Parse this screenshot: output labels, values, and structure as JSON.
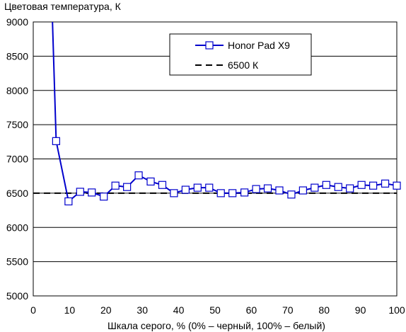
{
  "chart_data": {
    "type": "line",
    "title": "",
    "ylabel": "Цветовая температура, К",
    "xlabel": "Шкала серого, % (0% – черный, 100% – белый)",
    "xlim": [
      0,
      100
    ],
    "ylim": [
      5000,
      9000
    ],
    "xticks": [
      0,
      10,
      20,
      30,
      40,
      50,
      60,
      70,
      80,
      90,
      100
    ],
    "yticks": [
      5000,
      5500,
      6000,
      6500,
      7000,
      7500,
      8000,
      8500,
      9000
    ],
    "grid": "horizontal",
    "legend_position": "top-right",
    "series": [
      {
        "name": "Honor Pad X9",
        "color": "#0000cc",
        "marker": "square-open",
        "x": [
          5.3,
          6.3,
          9.7,
          12.9,
          16.1,
          19.4,
          22.6,
          25.8,
          29.0,
          32.3,
          35.5,
          38.7,
          41.9,
          45.2,
          48.4,
          51.6,
          54.8,
          58.1,
          61.3,
          64.5,
          67.7,
          71.0,
          74.2,
          77.4,
          80.6,
          83.9,
          87.1,
          90.3,
          93.5,
          96.8,
          100
        ],
        "y": [
          9000,
          7260,
          6380,
          6520,
          6510,
          6450,
          6610,
          6590,
          6760,
          6670,
          6620,
          6500,
          6550,
          6580,
          6580,
          6500,
          6500,
          6510,
          6560,
          6570,
          6540,
          6480,
          6540,
          6580,
          6620,
          6590,
          6570,
          6620,
          6610,
          6640,
          6610
        ],
        "markers_from_index": 1
      },
      {
        "name": "6500 К",
        "color": "#000000",
        "style": "dashed",
        "x": [
          0,
          100
        ],
        "y": [
          6500,
          6500
        ]
      }
    ]
  }
}
